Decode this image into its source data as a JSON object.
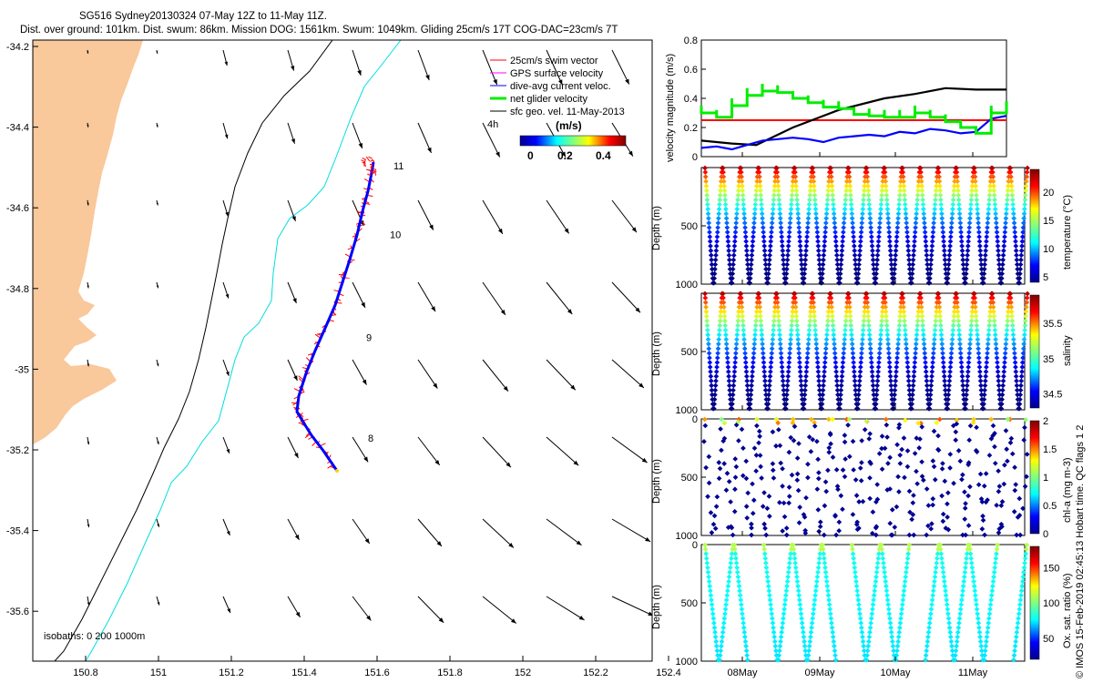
{
  "header": {
    "line1": "SG516 Sydney20130324 07-May 12Z to 11-May 11Z.",
    "line2": "Dist. over ground: 101km. Dist. swum: 86km. Mission DOG: 1561km. Swum: 1049km. Gliding 25cm/s 17T COG-DAC=23cm/s 7T"
  },
  "colors": {
    "land": "#f9c89b",
    "isobath200": "#000000",
    "isobath1000": "#00dede",
    "swim": "#ff0000",
    "gps": "#ff00ff",
    "dac": "#0000ff",
    "net": "#00ee00",
    "geo": "#000000"
  },
  "map": {
    "lon_ticks": [
      "150.8",
      "151",
      "151.2",
      "151.4",
      "151.6",
      "151.8",
      "152",
      "152.2",
      "152.4"
    ],
    "lat_ticks": [
      "-34.2",
      "-34.4",
      "-34.6",
      "-34.8",
      "-35",
      "-35.2",
      "-35.4",
      "-35.6"
    ],
    "isobath_note": "isobaths: 0   200   1000m",
    "legend": {
      "items": [
        "25cm/s swim vector",
        "GPS surface velocity",
        "dive-avg current veloc.",
        "net glider velocity",
        "sfc geo. vel. 11-May-2013"
      ],
      "scale_label": "4h",
      "colorbar_title": "(m/s)",
      "colorbar_ticks": [
        "0",
        "0.2",
        "0.4"
      ]
    },
    "day_labels": [
      {
        "text": "8",
        "lon": 151.575,
        "lat": -35.18
      },
      {
        "text": "9",
        "lon": 151.57,
        "lat": -34.93
      },
      {
        "text": "10",
        "lon": 151.635,
        "lat": -34.675
      },
      {
        "text": "11",
        "lon": 151.645,
        "lat": -34.505
      }
    ]
  },
  "chart_data": [
    {
      "type": "line",
      "name": "velocity",
      "ylabel": "velocity magnitude (m/s)",
      "ylim": [
        0,
        0.8
      ],
      "yticks": [
        "0",
        "0.2",
        "0.4",
        "0.6",
        "0.8"
      ],
      "series": [
        {
          "name": "25cm/s swim vector",
          "color": "#ff0000",
          "x": [
            0,
            1
          ],
          "values": [
            0.25,
            0.25
          ]
        },
        {
          "name": "sfc geo. vel. 11-May-2013",
          "color": "#000000",
          "x": [
            0,
            0.1,
            0.18,
            0.3,
            0.45,
            0.6,
            0.7,
            0.8,
            0.9,
            1
          ],
          "values": [
            0.11,
            0.09,
            0.08,
            0.2,
            0.32,
            0.4,
            0.43,
            0.47,
            0.46,
            0.46
          ]
        },
        {
          "name": "dive-avg current veloc.",
          "color": "#0000ff",
          "x": [
            0,
            0.05,
            0.1,
            0.15,
            0.2,
            0.25,
            0.3,
            0.35,
            0.4,
            0.45,
            0.5,
            0.55,
            0.6,
            0.65,
            0.7,
            0.75,
            0.8,
            0.85,
            0.9,
            0.95,
            1
          ],
          "values": [
            0.06,
            0.07,
            0.05,
            0.08,
            0.11,
            0.12,
            0.13,
            0.12,
            0.1,
            0.13,
            0.14,
            0.15,
            0.14,
            0.17,
            0.16,
            0.19,
            0.18,
            0.16,
            0.17,
            0.26,
            0.28
          ]
        },
        {
          "name": "net glider velocity",
          "color": "#00ee00",
          "x": [
            0,
            0.05,
            0.1,
            0.15,
            0.2,
            0.25,
            0.3,
            0.35,
            0.4,
            0.45,
            0.5,
            0.55,
            0.6,
            0.65,
            0.7,
            0.75,
            0.8,
            0.85,
            0.9,
            0.95,
            1
          ],
          "values": [
            0.3,
            0.27,
            0.35,
            0.42,
            0.45,
            0.44,
            0.4,
            0.37,
            0.34,
            0.33,
            0.29,
            0.28,
            0.27,
            0.27,
            0.3,
            0.27,
            0.24,
            0.2,
            0.16,
            0.3,
            0.33
          ]
        }
      ]
    },
    {
      "type": "scatter",
      "name": "temperature",
      "ylabel": "Depth (m)",
      "ylim": [
        1000,
        0
      ],
      "yticks": [
        "500",
        "1000"
      ],
      "colorbar_label": "temperature (°C)",
      "colorbar_ticks": [
        "5",
        "10",
        "15",
        "20"
      ],
      "clim": [
        4,
        24
      ],
      "dives": 36
    },
    {
      "type": "scatter",
      "name": "salinity",
      "ylabel": "Depth (m)",
      "ylim": [
        1000,
        0
      ],
      "yticks": [
        "500",
        "1000"
      ],
      "colorbar_label": "salinity",
      "colorbar_ticks": [
        "34.5",
        "35",
        "35.5"
      ],
      "clim": [
        34.3,
        35.9
      ],
      "dives": 36
    },
    {
      "type": "scatter",
      "name": "chl-a",
      "ylabel": "Depth (m)",
      "ylim": [
        1000,
        0
      ],
      "yticks": [
        "0",
        "500",
        "1000"
      ],
      "colorbar_label": "chl-a (mg m-3)",
      "colorbar_ticks": [
        "0",
        "0.5",
        "1",
        "1.5",
        "2"
      ],
      "clim": [
        0,
        2
      ],
      "dives": 36
    },
    {
      "type": "scatter",
      "name": "oxygen",
      "ylabel": "Depth (m)",
      "ylim": [
        1000,
        0
      ],
      "yticks": [
        "0",
        "500",
        "1000"
      ],
      "colorbar_label": "Ox. sat. ratio (%)",
      "colorbar_ticks": [
        "50",
        "100",
        "150"
      ],
      "clim": [
        20,
        180
      ],
      "dives": 22
    }
  ],
  "time_axis": {
    "ticks": [
      "08May",
      "09May",
      "10May",
      "11May"
    ]
  },
  "credit": "© IMOS 15-Feb-2019 02:45:13 Hobart time. QC flags 1  2"
}
